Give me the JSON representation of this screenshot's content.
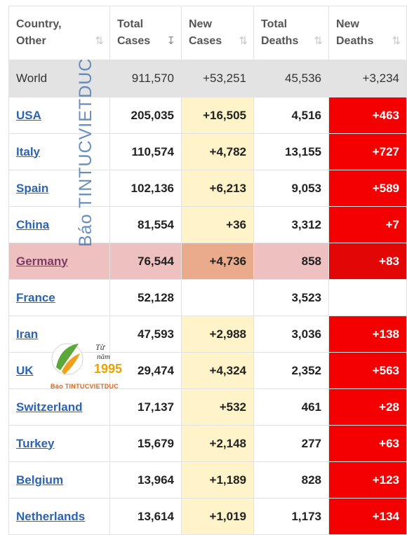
{
  "columns": [
    {
      "line1": "Country,",
      "line2": "Other",
      "sort_icon": "⇅"
    },
    {
      "line1": "Total",
      "line2": "Cases",
      "sort_icon": "↧"
    },
    {
      "line1": "New",
      "line2": "Cases",
      "sort_icon": "⇅"
    },
    {
      "line1": "Total",
      "line2": "Deaths",
      "sort_icon": "⇅"
    },
    {
      "line1": "New",
      "line2": "Deaths",
      "sort_icon": "⇅"
    }
  ],
  "world": {
    "country": "World",
    "total_cases": "911,570",
    "new_cases": "+53,251",
    "total_deaths": "45,536",
    "new_deaths": "+3,234"
  },
  "rows": [
    {
      "country": "USA",
      "total_cases": "205,035",
      "new_cases": "+16,505",
      "total_deaths": "4,516",
      "new_deaths": "+463"
    },
    {
      "country": "Italy",
      "total_cases": "110,574",
      "new_cases": "+4,782",
      "total_deaths": "13,155",
      "new_deaths": "+727"
    },
    {
      "country": "Spain",
      "total_cases": "102,136",
      "new_cases": "+6,213",
      "total_deaths": "9,053",
      "new_deaths": "+589"
    },
    {
      "country": "China",
      "total_cases": "81,554",
      "new_cases": "+36",
      "total_deaths": "3,312",
      "new_deaths": "+7"
    },
    {
      "country": "Germany",
      "total_cases": "76,544",
      "new_cases": "+4,736",
      "total_deaths": "858",
      "new_deaths": "+83"
    },
    {
      "country": "France",
      "total_cases": "52,128",
      "new_cases": "",
      "total_deaths": "3,523",
      "new_deaths": ""
    },
    {
      "country": "Iran",
      "total_cases": "47,593",
      "new_cases": "+2,988",
      "total_deaths": "3,036",
      "new_deaths": "+138"
    },
    {
      "country": "UK",
      "total_cases": "29,474",
      "new_cases": "+4,324",
      "total_deaths": "2,352",
      "new_deaths": "+563"
    },
    {
      "country": "Switzerland",
      "total_cases": "17,137",
      "new_cases": "+532",
      "total_deaths": "461",
      "new_deaths": "+28"
    },
    {
      "country": "Turkey",
      "total_cases": "15,679",
      "new_cases": "+2,148",
      "total_deaths": "277",
      "new_deaths": "+63"
    },
    {
      "country": "Belgium",
      "total_cases": "13,964",
      "new_cases": "+1,189",
      "total_deaths": "828",
      "new_deaths": "+123"
    },
    {
      "country": "Netherlands",
      "total_cases": "13,614",
      "new_cases": "+1,019",
      "total_deaths": "1,173",
      "new_deaths": "+134"
    }
  ],
  "watermark": {
    "vertical_text": "Báo TINTUCVIETDUC",
    "logo_line1": "Từ",
    "logo_line2": "năm",
    "logo_year": "1995",
    "logo_caption": "Báo TINTUCVIETDUC"
  },
  "colors": {
    "new_cases_bg": "#fff3c9",
    "new_deaths_bg": "#f40000",
    "world_row_bg": "#e3e3e3",
    "highlight_row_bg": "#eec0c0",
    "link": "#2a64b2"
  }
}
